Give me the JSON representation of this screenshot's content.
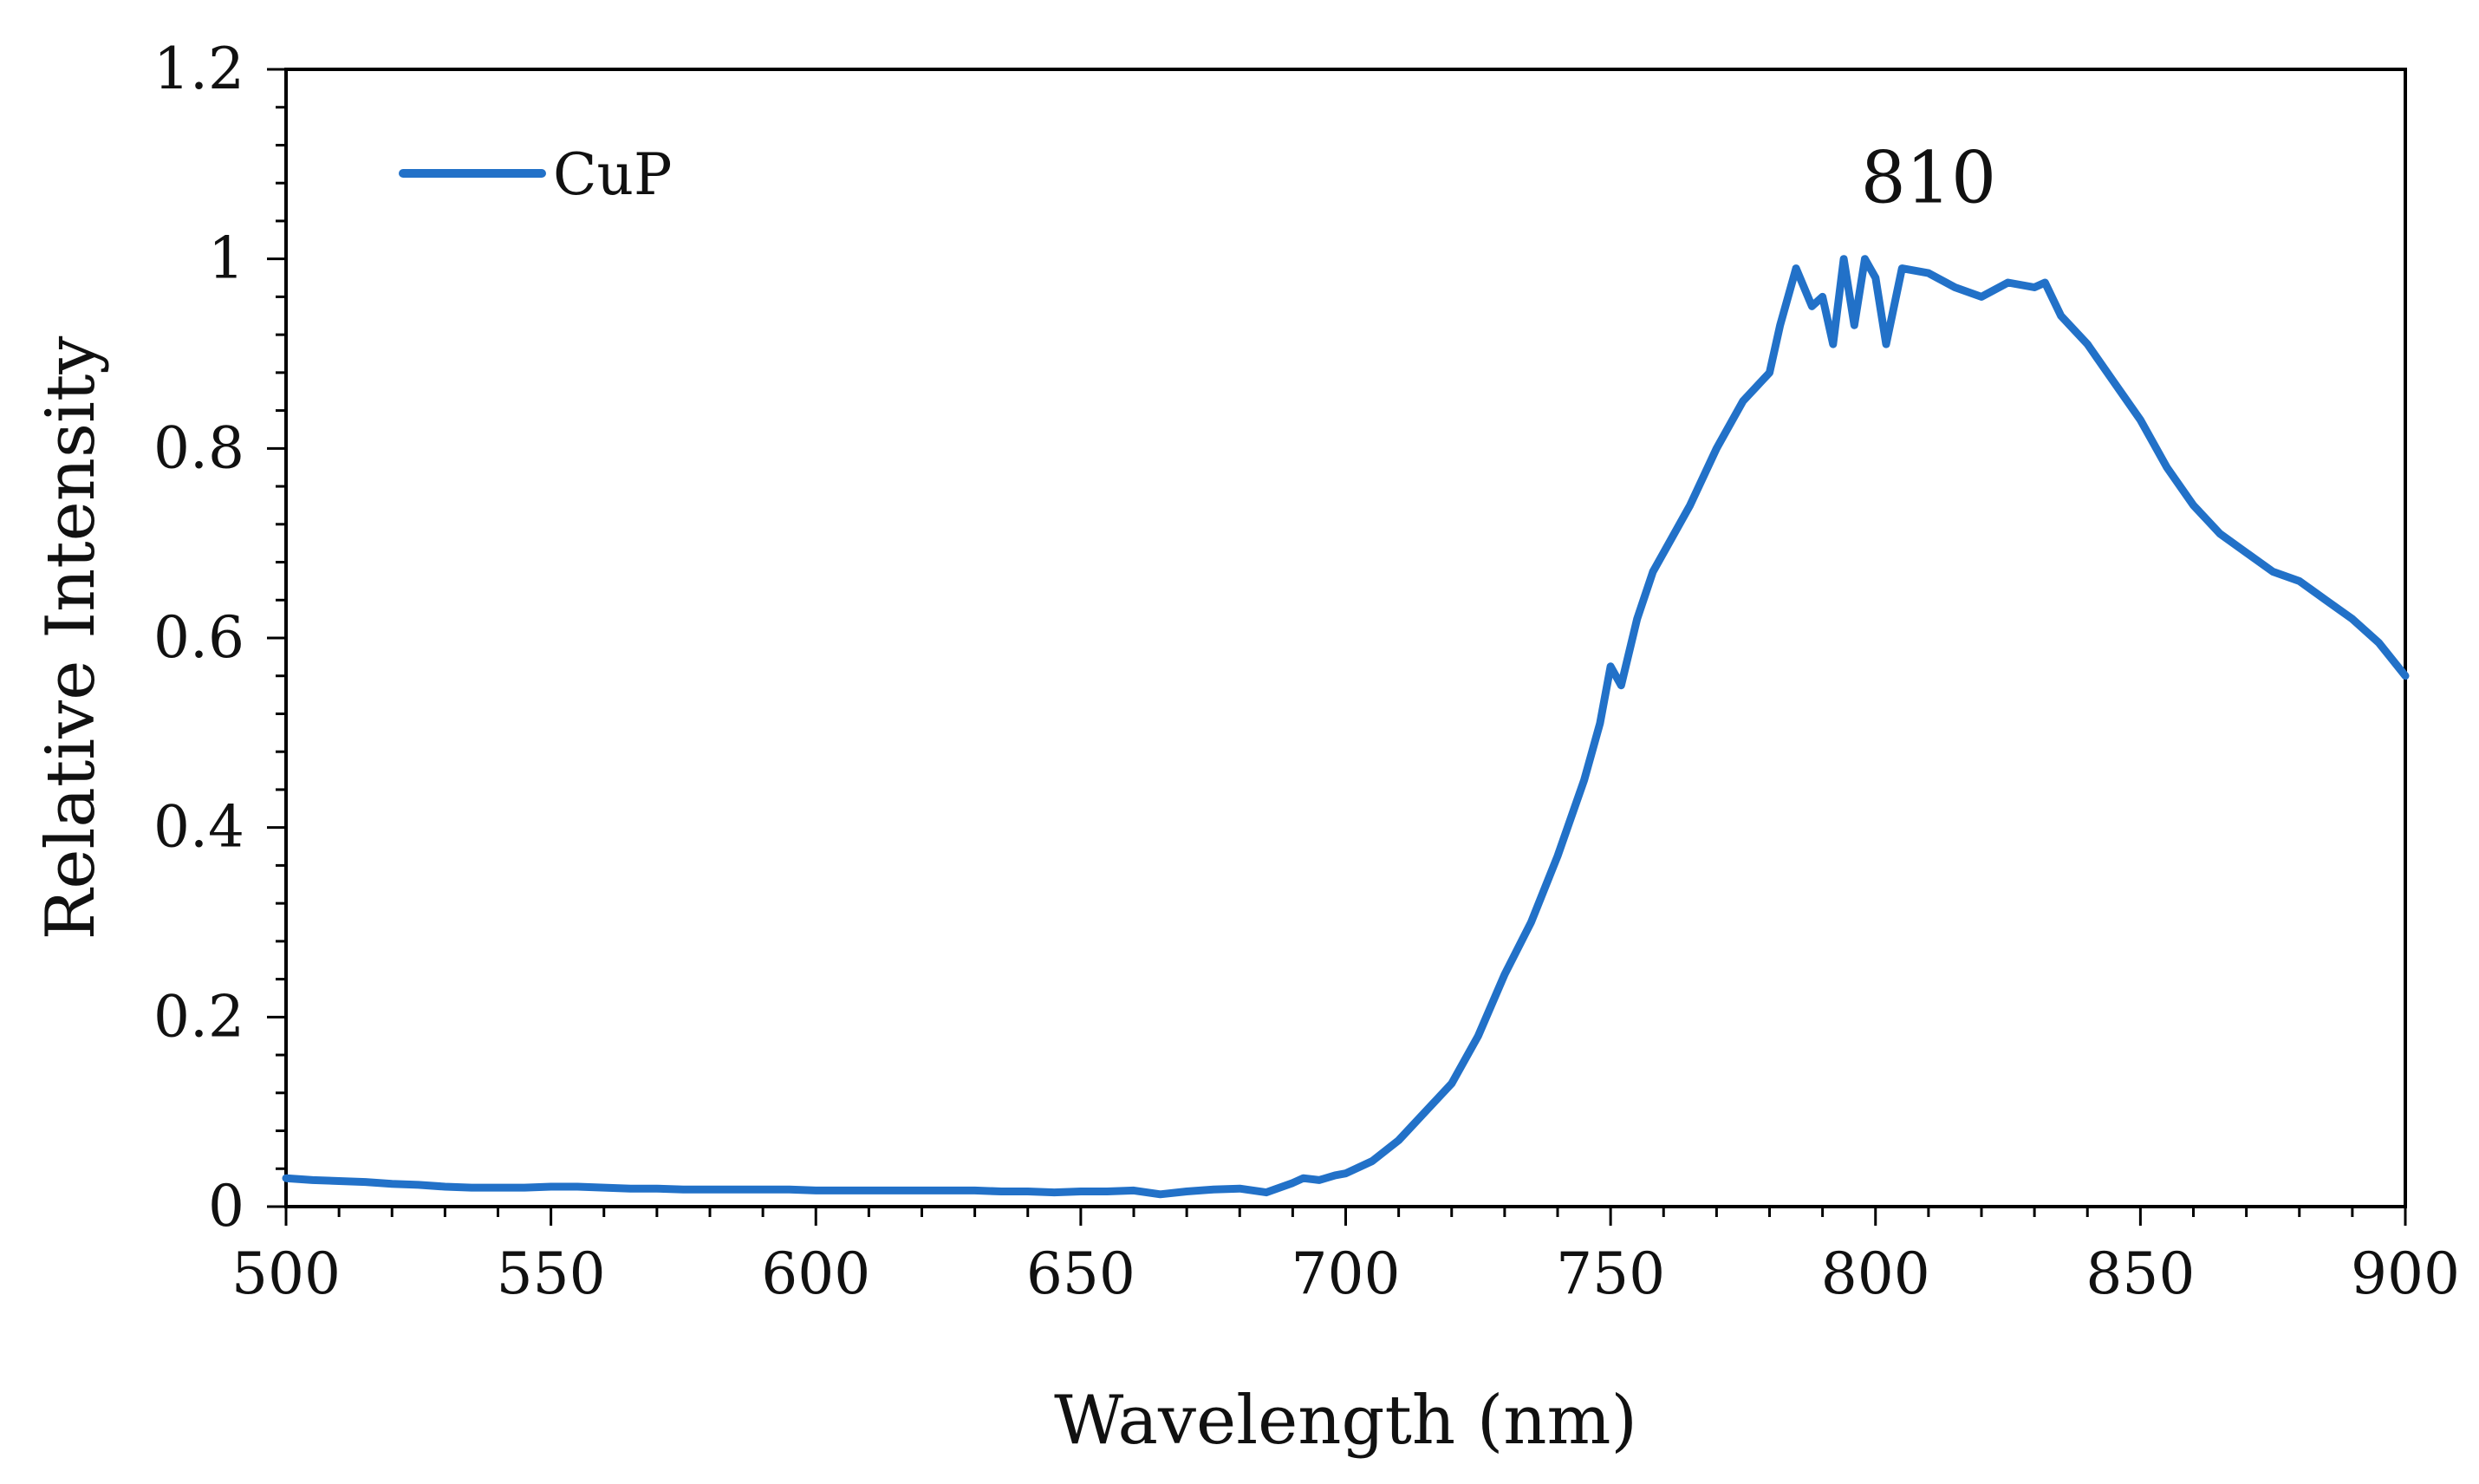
{
  "chart_data": {
    "type": "line",
    "title": "",
    "xlabel": "Wavelength (nm)",
    "ylabel": "Relative Intensity",
    "xlim": [
      500,
      900
    ],
    "ylim": [
      0,
      1.2
    ],
    "x_ticks": [
      500,
      550,
      600,
      650,
      700,
      750,
      800,
      850,
      900
    ],
    "x_tick_labels": [
      "500",
      "550",
      "600",
      "650",
      "700",
      "750",
      "800",
      "850",
      "900"
    ],
    "y_ticks": [
      0,
      0.2,
      0.4,
      0.6,
      0.8,
      1.0,
      1.2
    ],
    "y_tick_labels": [
      "0",
      "0.2",
      "0.4",
      "0.6",
      "0.8",
      "1",
      "1.2"
    ],
    "grid": false,
    "legend_position": "top-left",
    "annotations": [
      {
        "text": "810",
        "x": 810,
        "y": 1.085
      }
    ],
    "series": [
      {
        "name": "CuP",
        "color": "#2271c8",
        "x": [
          500,
          505,
          510,
          515,
          520,
          525,
          530,
          535,
          540,
          545,
          550,
          555,
          560,
          565,
          570,
          575,
          580,
          585,
          590,
          595,
          600,
          605,
          610,
          615,
          620,
          625,
          630,
          635,
          640,
          645,
          650,
          655,
          660,
          665,
          670,
          675,
          680,
          685,
          690,
          692,
          695,
          698,
          700,
          705,
          710,
          715,
          720,
          725,
          730,
          735,
          740,
          745,
          748,
          750,
          752,
          755,
          758,
          760,
          765,
          770,
          775,
          780,
          782,
          785,
          788,
          790,
          792,
          794,
          796,
          798,
          800,
          802,
          805,
          810,
          815,
          820,
          825,
          830,
          832,
          835,
          840,
          845,
          850,
          855,
          860,
          865,
          870,
          875,
          880,
          885,
          890,
          895,
          900
        ],
        "values": [
          0.03,
          0.028,
          0.027,
          0.026,
          0.024,
          0.023,
          0.021,
          0.02,
          0.02,
          0.02,
          0.021,
          0.021,
          0.02,
          0.019,
          0.019,
          0.018,
          0.018,
          0.018,
          0.018,
          0.018,
          0.017,
          0.017,
          0.017,
          0.017,
          0.017,
          0.017,
          0.017,
          0.016,
          0.016,
          0.015,
          0.016,
          0.016,
          0.017,
          0.013,
          0.016,
          0.018,
          0.019,
          0.015,
          0.025,
          0.03,
          0.028,
          0.033,
          0.035,
          0.048,
          0.07,
          0.1,
          0.13,
          0.18,
          0.245,
          0.3,
          0.37,
          0.45,
          0.51,
          0.57,
          0.55,
          0.62,
          0.67,
          0.69,
          0.74,
          0.8,
          0.85,
          0.88,
          0.93,
          0.99,
          0.95,
          0.96,
          0.91,
          1.0,
          0.93,
          1.0,
          0.98,
          0.91,
          0.99,
          0.985,
          0.97,
          0.96,
          0.975,
          0.97,
          0.975,
          0.94,
          0.91,
          0.87,
          0.83,
          0.78,
          0.74,
          0.71,
          0.69,
          0.67,
          0.66,
          0.64,
          0.62,
          0.595,
          0.56
        ]
      }
    ]
  }
}
